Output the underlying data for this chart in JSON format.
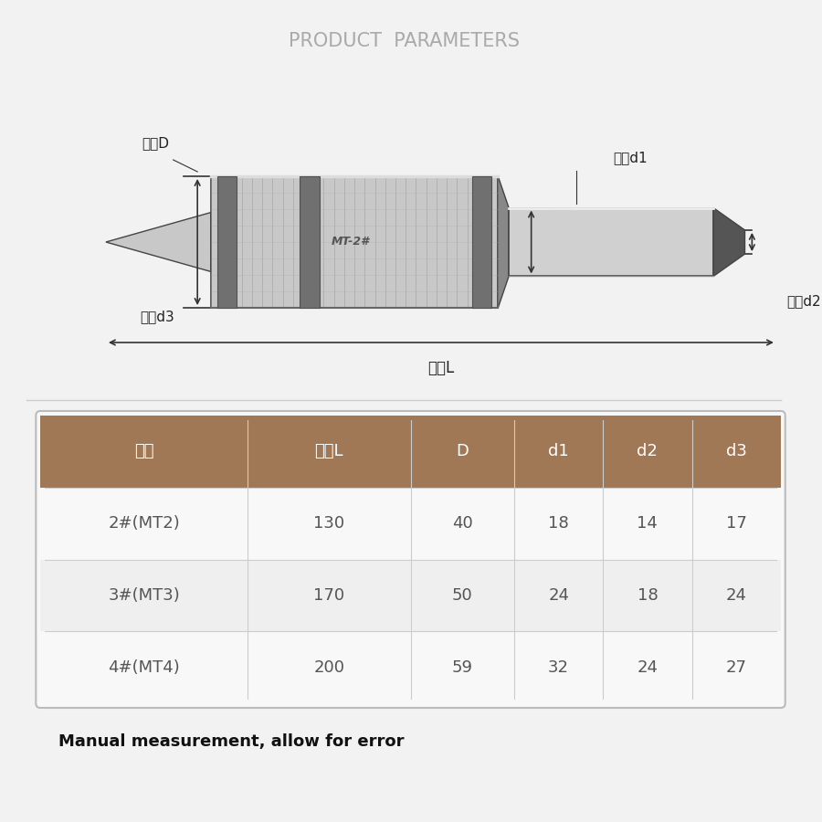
{
  "title": "PRODUCT  PARAMETERS",
  "title_color": "#aaaaaa",
  "title_fontsize": 15,
  "bg_color": "#f2f2f2",
  "table_header": [
    "规格",
    "长度L",
    "D",
    "d1",
    "d2",
    "d3"
  ],
  "table_rows": [
    [
      "2#(MT2)",
      "130",
      "40",
      "18",
      "14",
      "17"
    ],
    [
      "3#(MT3)",
      "170",
      "50",
      "24",
      "18",
      "24"
    ],
    [
      "4#(MT4)",
      "200",
      "59",
      "32",
      "24",
      "27"
    ]
  ],
  "header_bg": "#a07855",
  "header_text_color": "#ffffff",
  "row_bg_even": "#f8f8f8",
  "row_bg_odd": "#efefef",
  "row_text_color": "#555555",
  "table_border_color": "#cccccc",
  "annotation_color": "#222222",
  "arrow_color": "#333333",
  "label_D": "直径D",
  "label_d1": "直径d1",
  "label_d2": "直径d2",
  "label_d3": "直径d3",
  "label_L": "长度L",
  "note_text": "Manual measurement, allow for error",
  "note_fontsize": 13
}
